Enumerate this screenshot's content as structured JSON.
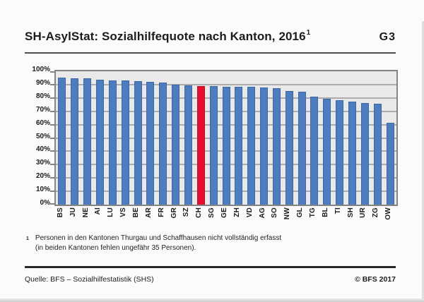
{
  "header": {
    "title": "SH-AsylStat: Sozialhilfequote nach Kanton, 2016",
    "title_superscript": "1",
    "graph_id": "G3"
  },
  "chart_data": {
    "type": "bar",
    "title": "SH-AsylStat: Sozialhilfequote nach Kanton, 2016",
    "categories": [
      "BS",
      "JU",
      "NE",
      "AI",
      "LU",
      "VS",
      "BE",
      "AR",
      "FR",
      "GR",
      "SZ",
      "CH",
      "SG",
      "GE",
      "ZH",
      "VD",
      "AG",
      "SO",
      "NW",
      "GL",
      "TG",
      "BL",
      "TI",
      "SH",
      "UR",
      "ZG",
      "OW"
    ],
    "values": [
      95,
      94.5,
      94.5,
      93.5,
      93,
      93,
      92.5,
      92,
      91.5,
      90,
      89.5,
      89,
      89,
      88.5,
      88.5,
      88.5,
      88,
      87.5,
      85,
      84.5,
      81,
      79.5,
      78.5,
      77,
      76,
      75.5,
      61.5
    ],
    "highlight_category": "CH",
    "xlabel": "",
    "ylabel": "",
    "ylim": [
      0,
      100
    ],
    "ytick_step": 10,
    "yticks": [
      "0%",
      "10%",
      "20%",
      "30%",
      "40%",
      "50%",
      "60%",
      "70%",
      "80%",
      "90%",
      "100%"
    ],
    "grid": true,
    "legend": "none",
    "colors": {
      "bar": "#4d7dbe",
      "bar_border": "#3b69a7",
      "highlight": "#e60e2d",
      "highlight_border": "#c10c26",
      "plot_bg": "#e9e9e9",
      "grid_line": "#acacac",
      "plot_border": "#848484"
    }
  },
  "footnote": {
    "marker": "1",
    "line1": "Personen in den Kantonen Thurgau und Schaffhausen nicht vollständig erfasst",
    "line2": "(in beiden Kantonen fehlen ungefähr 35 Personen)."
  },
  "footer": {
    "source": "Quelle: BFS – Sozialhilfestatistik (SHS)",
    "copyright": "© BFS 2017"
  }
}
